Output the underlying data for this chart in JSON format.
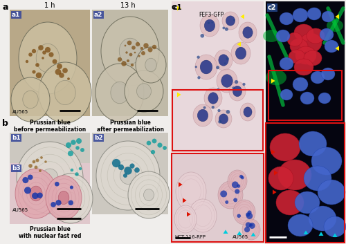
{
  "fig_width": 5.0,
  "fig_height": 3.53,
  "dpi": 100,
  "bg_color": "#f0eeec",
  "panel_a_label": "a",
  "panel_b_label": "b",
  "panel_c_label": "c",
  "label_a1": "a1",
  "label_a2": "a2",
  "label_b1": "b1",
  "label_b2": "b2",
  "label_b3": "b3",
  "label_c1": "c1",
  "label_c2": "c2",
  "time_1h": "1 h",
  "time_13h": "13 h",
  "au565_label": "AU565",
  "hct116_label": "HCT-116-RFP",
  "fef3gfp_label": "FEF3-GFP",
  "prussian_b1": "Prussian blue\nbefore permeabilization",
  "prussian_b2": "Prussian blue\nafter permeabilization",
  "prussian_b3": "Prussian blue\nwith nuclear fast red",
  "color_a1_bg": "#b8a888",
  "color_a2_bg": "#c0baa8",
  "color_b1_bg": "#ccc8c0",
  "color_b2_bg": "#ccc8c0",
  "color_b3_bg": "#e0c8cc",
  "color_c1_bg": "#e8d8dc",
  "color_c1_inset_bg": "#e0ccd0",
  "color_c2_bg": "#050510",
  "color_c2_inset_bg": "#050510",
  "scale_bar_color": "#000000",
  "red_box_color": "#dd1111",
  "yellow_arrow_color": "#ffee00",
  "red_arrow_color": "#dd1100",
  "cyan_arrow_color": "#00ccdd"
}
